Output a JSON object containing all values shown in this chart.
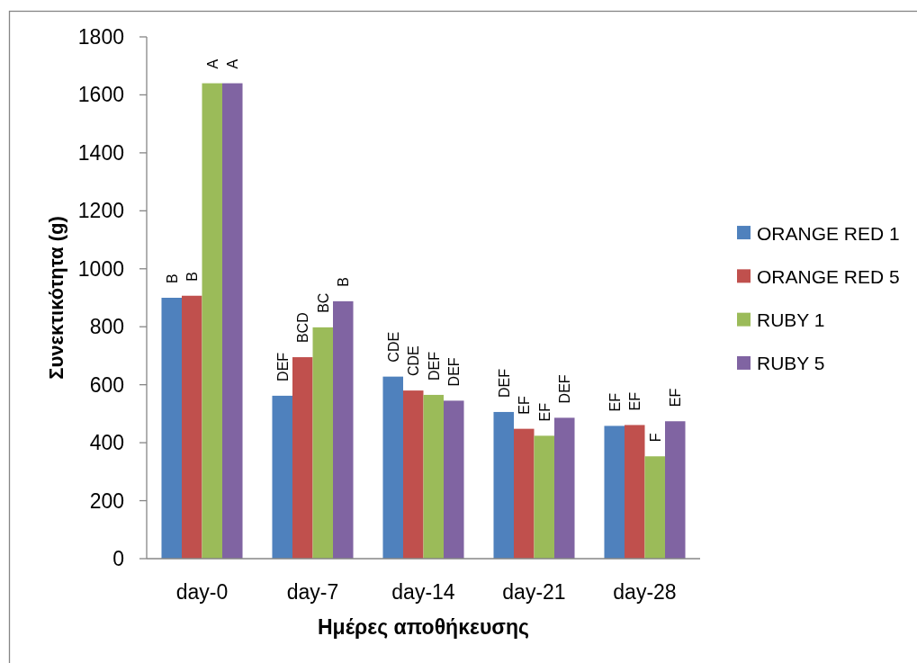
{
  "chart_data": {
    "type": "bar",
    "xlabel": "Ημέρες αποθήκευσης",
    "ylabel": "Συνεκτικότητα (g)",
    "categories": [
      "day-0",
      "day-7",
      "day-14",
      "day-21",
      "day-28"
    ],
    "ylim": [
      0,
      1800
    ],
    "yticks": [
      0,
      200,
      400,
      600,
      800,
      1000,
      1200,
      1400,
      1600,
      1800
    ],
    "grid": false,
    "legend": "right",
    "series": [
      {
        "name": "ORANGE RED 1",
        "color": "#4f81bd",
        "values": [
          900,
          562,
          628,
          506,
          458
        ],
        "value_labels": [
          "B",
          "DEF",
          "CDE",
          "DEF",
          "EF"
        ]
      },
      {
        "name": "ORANGE RED 5",
        "color": "#c0504d",
        "values": [
          907,
          695,
          580,
          448,
          461
        ],
        "value_labels": [
          "B",
          "BCD",
          "CDE",
          "EF",
          "EF"
        ]
      },
      {
        "name": "RUBY 1",
        "color": "#9bbb59",
        "values": [
          1640,
          798,
          565,
          424,
          353
        ],
        "value_labels": [
          "A",
          "BC",
          "DEF",
          "EF",
          "F"
        ]
      },
      {
        "name": "RUBY 5",
        "color": "#8064a2",
        "values": [
          1640,
          888,
          545,
          486,
          474
        ],
        "value_labels": [
          "A",
          "B",
          "DEF",
          "DEF",
          "EF"
        ]
      }
    ]
  }
}
